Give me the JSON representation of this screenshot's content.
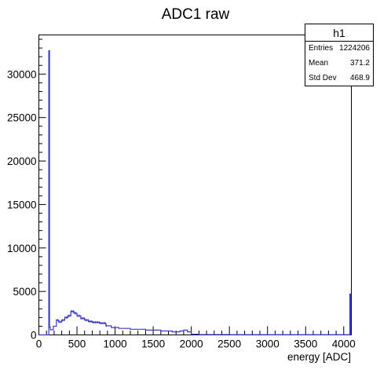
{
  "chart_data": {
    "type": "histogram",
    "title": "ADC1 raw",
    "xlabel": "energy [ADC]",
    "ylabel": "",
    "xlim": [
      0,
      4100
    ],
    "ylim": [
      0,
      34500
    ],
    "x_ticks": [
      0,
      500,
      1000,
      1500,
      2000,
      2500,
      3000,
      3500,
      4000
    ],
    "y_ticks": [
      0,
      5000,
      10000,
      15000,
      20000,
      25000,
      30000
    ],
    "line_color": "#3b3bc8",
    "histogram": {
      "name": "h1",
      "bins": [
        [
          0,
          130,
          0
        ],
        [
          130,
          140,
          32700
        ],
        [
          140,
          150,
          900
        ],
        [
          150,
          190,
          600
        ],
        [
          190,
          230,
          1000
        ],
        [
          230,
          260,
          1700
        ],
        [
          260,
          300,
          1500
        ],
        [
          300,
          340,
          1700
        ],
        [
          340,
          380,
          2000
        ],
        [
          380,
          420,
          2200
        ],
        [
          420,
          460,
          2700
        ],
        [
          460,
          500,
          2500
        ],
        [
          500,
          550,
          2200
        ],
        [
          550,
          600,
          1900
        ],
        [
          600,
          650,
          1700
        ],
        [
          650,
          700,
          1550
        ],
        [
          700,
          800,
          1450
        ],
        [
          800,
          880,
          1350
        ],
        [
          880,
          950,
          1050
        ],
        [
          950,
          1050,
          850
        ],
        [
          1050,
          1200,
          750
        ],
        [
          1200,
          1400,
          650
        ],
        [
          1400,
          1600,
          550
        ],
        [
          1600,
          1750,
          450
        ],
        [
          1750,
          1850,
          350
        ],
        [
          1850,
          1900,
          450
        ],
        [
          1900,
          1950,
          550
        ],
        [
          1950,
          2000,
          350
        ],
        [
          2000,
          2100,
          80
        ],
        [
          2100,
          2500,
          40
        ],
        [
          2500,
          3000,
          30
        ],
        [
          3000,
          3500,
          25
        ],
        [
          3500,
          4080,
          20
        ],
        [
          4080,
          4090,
          4700
        ],
        [
          4090,
          4100,
          0
        ]
      ]
    }
  },
  "stats_box": {
    "title": "h1",
    "rows": [
      {
        "label": "Entries",
        "value": "1224206"
      },
      {
        "label": "Mean",
        "value": "371.2"
      },
      {
        "label": "Std Dev",
        "value": "468.9"
      }
    ]
  }
}
